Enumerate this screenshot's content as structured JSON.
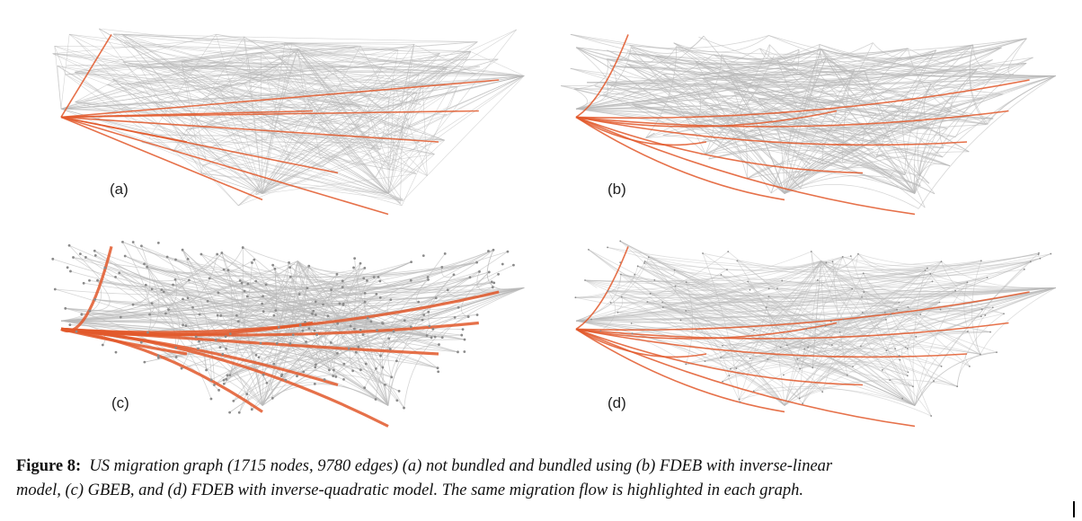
{
  "figure": {
    "panels": [
      {
        "id": "a",
        "label": "(a)",
        "style": "straight"
      },
      {
        "id": "b",
        "label": "(b)",
        "style": "fdeb-linear"
      },
      {
        "id": "c",
        "label": "(c)",
        "style": "gbeb"
      },
      {
        "id": "d",
        "label": "(d)",
        "style": "fdeb-quadratic"
      }
    ],
    "edge_color": "#b9b9b9",
    "highlight_color": "#e2582a",
    "node_color": "#8a8a8a"
  },
  "caption": {
    "lead": "Figure 8:",
    "lines": [
      "US migration graph (1715 nodes, 9780 edges) (a) not bundled and bundled using (b) FDEB with inverse-linear",
      "model, (c) GBEB, and (d) FDEB with inverse-quadratic model. The same migration flow is highlighted in each graph."
    ]
  }
}
